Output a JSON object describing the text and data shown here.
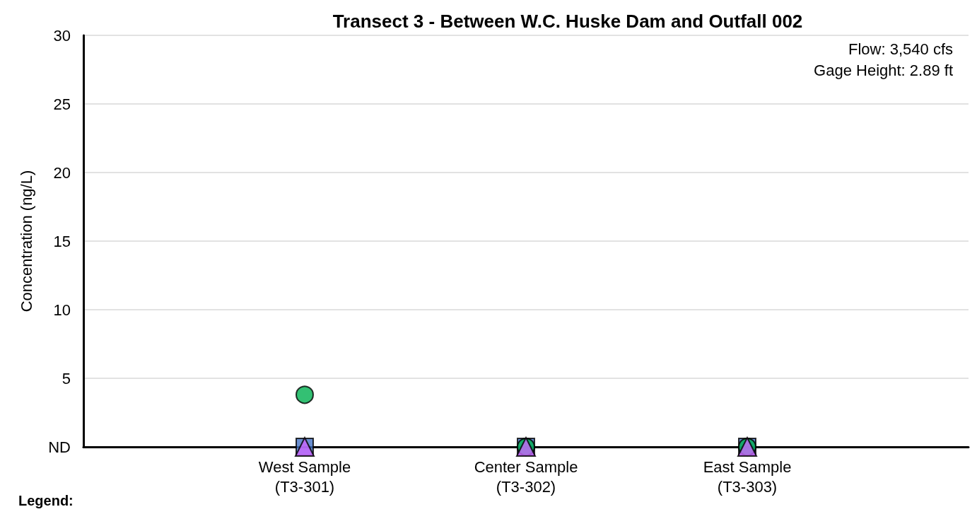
{
  "chart_data": {
    "type": "scatter",
    "title": "Transect 3 - Between W.C. Huske Dam and Outfall 002",
    "ylabel": "Concentration (ng/L)",
    "categories": [
      null,
      "West Sample\n(T3-301)",
      "Center Sample\n(T3-302)",
      "East Sample\n(T3-303)",
      null
    ],
    "series": [
      {
        "color": "#4472c4",
        "marker": "square",
        "values": [
          null,
          0,
          0,
          0,
          null
        ]
      },
      {
        "color": "#00b050",
        "marker": "circle",
        "values": [
          null,
          3.8,
          0,
          0,
          null
        ]
      },
      {
        "color": "#cc66ff",
        "marker": "triangle",
        "values": [
          null,
          0,
          0,
          0,
          null
        ]
      }
    ],
    "ylim": [
      0,
      30
    ],
    "yticks": [
      {
        "value": 0,
        "label": "ND"
      },
      5,
      10,
      15,
      20,
      25,
      30
    ],
    "grid": "y",
    "annotations": [
      "Flow: 3,540 cfs",
      "Gage Height: 2.89 ft",
      "Legend:"
    ]
  }
}
